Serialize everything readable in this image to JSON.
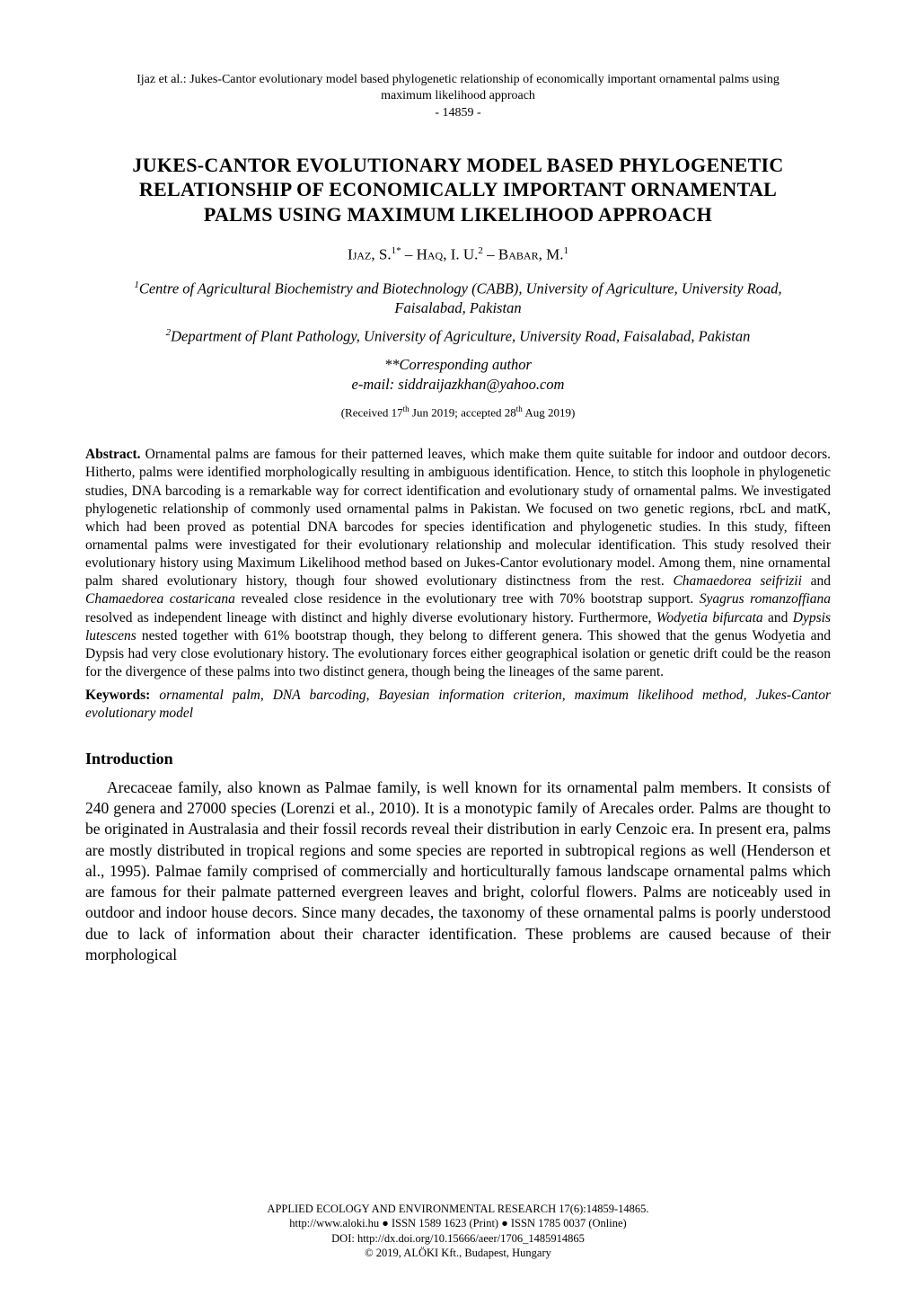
{
  "running_header_line1": "Ijaz et al.: Jukes-Cantor evolutionary model based phylogenetic relationship of economically important ornamental palms using",
  "running_header_line2": "maximum likelihood approach",
  "page_number": "- 14859 -",
  "title": "JUKES-CANTOR EVOLUTIONARY MODEL BASED PHYLOGENETIC RELATIONSHIP OF ECONOMICALLY IMPORTANT ORNAMENTAL PALMS USING MAXIMUM LIKELIHOOD APPROACH",
  "authors_html": "I<span class='sc'>jaz</span>, S.<sup>1*</sup> – H<span class='sc'>aq</span>, I. U.<sup>2</sup> – B<span class='sc'>abar</span>, M.<sup>1</sup>",
  "authors_plain": "Ijaz, S.1* – Haq, I. U.2 – Babar, M.1",
  "affiliation1_sup": "1",
  "affiliation1": "Centre of Agricultural Biochemistry and Biotechnology (CABB), University of Agriculture, University Road, Faisalabad, Pakistan",
  "affiliation2_sup": "2",
  "affiliation2": "Department of Plant Pathology, University of Agriculture, University Road, Faisalabad, Pakistan",
  "corresponding_label": "*Corresponding author",
  "corresponding_email": "e-mail: siddraijazkhan@yahoo.com",
  "received": "(Received 17th Jun 2019; accepted 28th Aug 2019)",
  "abstract_label": "Abstract.",
  "abstract_text": " Ornamental palms are famous for their patterned leaves, which make them quite suitable for indoor and outdoor decors. Hitherto, palms were identified morphologically resulting in ambiguous identification. Hence, to stitch this loophole in phylogenetic studies, DNA barcoding is a remarkable way for correct identification and evolutionary study of ornamental palms. We investigated phylogenetic relationship of commonly used ornamental palms in Pakistan. We focused on two genetic regions, rbcL and matK, which had been proved as potential DNA barcodes for species identification and phylogenetic studies. In this study, fifteen ornamental palms were investigated for their evolutionary relationship and molecular identification. This study resolved their evolutionary history using Maximum Likelihood method based on Jukes-Cantor evolutionary model. Among them, nine ornamental palm shared evolutionary history, though four showed evolutionary distinctness from the rest. ",
  "abstract_sp1": "Chamaedorea seifrizii",
  "abstract_mid1": " and ",
  "abstract_sp2": "Chamaedorea costaricana",
  "abstract_mid2": " revealed close residence in the evolutionary tree with 70% bootstrap support. ",
  "abstract_sp3": "Syagrus romanzoffiana",
  "abstract_mid3": " resolved as independent lineage with distinct and highly diverse evolutionary history. Furthermore, ",
  "abstract_sp4": "Wodyetia bifurcata",
  "abstract_mid4": " and ",
  "abstract_sp5": "Dypsis lutescens",
  "abstract_tail": " nested together with 61% bootstrap though, they belong to different genera. This showed that the genus Wodyetia and Dypsis had very close evolutionary history. The evolutionary forces either geographical isolation or genetic drift could be the reason for the divergence of these palms into two distinct genera, though being the lineages of the same parent.",
  "keywords_label": "Keywords:",
  "keywords_text": " ornamental palm, DNA barcoding, Bayesian information criterion, maximum likelihood method, Jukes-Cantor evolutionary model",
  "section_heading": "Introduction",
  "intro_text": "Arecaceae family, also known as Palmae family, is well known for its ornamental palm members. It consists of 240 genera and 27000 species (Lorenzi et al., 2010). It is a monotypic family of Arecales order. Palms are thought to be originated in Australasia and their fossil records reveal their distribution in early Cenzoic era. In present era, palms are mostly distributed in tropical regions and some species are reported in subtropical regions as well (Henderson et al., 1995). Palmae family comprised of commercially and horticulturally famous landscape ornamental palms which are famous for their palmate patterned evergreen leaves and bright, colorful flowers. Palms are noticeably used in outdoor and indoor house decors. Since many decades, the taxonomy of these ornamental palms is poorly understood due to lack of information about their character identification. These problems are caused because of their morphological",
  "footer_line1": "APPLIED ECOLOGY AND ENVIRONMENTAL RESEARCH 17(6):14859-14865.",
  "footer_line2": "http://www.aloki.hu ● ISSN 1589 1623 (Print) ● ISSN 1785 0037 (Online)",
  "footer_line3": "DOI: http://dx.doi.org/10.15666/aeer/1706_1485914865",
  "footer_line4": "© 2019, ALÖKI Kft., Budapest, Hungary"
}
